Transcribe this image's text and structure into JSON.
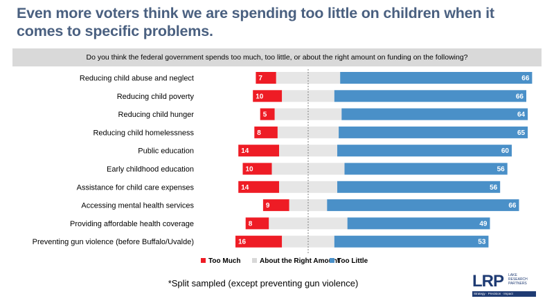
{
  "header": {
    "title": "Even more voters think we are spending too little on children when it comes to specific problems.",
    "question": "Do you think the federal government spends too much, too little, or about the right amount on funding on the following?"
  },
  "chart_data": {
    "type": "bar",
    "orientation": "horizontal-stacked",
    "categories": [
      "Reducing child abuse and neglect",
      "Reducing child poverty",
      "Reducing child hunger",
      "Reducing child homelessness",
      "Public education",
      "Early childhood education",
      "Assistance for child care expenses",
      "Accessing mental health services",
      "Providing affordable health coverage",
      "Preventing gun violence (before Buffalo/Uvalde)"
    ],
    "series": [
      {
        "name": "Too Much",
        "color": "#ee1c25",
        "values": [
          7,
          10,
          5,
          8,
          14,
          10,
          14,
          9,
          8,
          16
        ]
      },
      {
        "name": "About the Right Amount",
        "color": "#e6e6e6",
        "values": [
          22,
          18,
          23,
          21,
          20,
          25,
          20,
          13,
          27,
          18
        ]
      },
      {
        "name": "Too Little",
        "color": "#4a90c8",
        "values": [
          66,
          66,
          64,
          65,
          60,
          56,
          56,
          66,
          49,
          53
        ]
      }
    ],
    "legend_position": "bottom",
    "grid": false
  },
  "footnote": "*Split sampled (except preventing gun violence)",
  "logo": {
    "name": "LRP",
    "subtitle": "LAKE RESEARCH PARTNERS",
    "tagline": "Strategy · Precision · Impact"
  }
}
